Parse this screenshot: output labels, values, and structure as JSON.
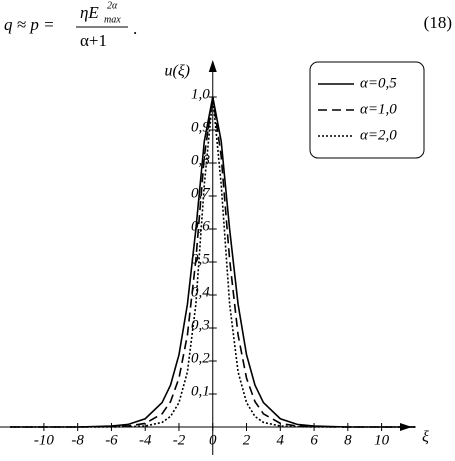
{
  "equation": {
    "lhs": "q ≈ p =",
    "numerator": "ηE",
    "superscript": "2α",
    "subscript": "max",
    "denominator": "α+1",
    "end": ".",
    "number": "(18)"
  },
  "chart_data": {
    "type": "line",
    "ylabel": "u(ξ)",
    "xlabel": "ξ",
    "x": [
      -12,
      -10,
      -8,
      -6,
      -5,
      -4,
      -3,
      -2.5,
      -2,
      -1.5,
      -1,
      -0.5,
      0,
      0.5,
      1,
      1.5,
      2,
      2.5,
      3,
      4,
      5,
      6,
      8,
      10,
      12
    ],
    "series": [
      {
        "name": "α=0,5",
        "color": "#000",
        "dash": "solid",
        "values": [
          0,
          0,
          0,
          0.003,
          0.008,
          0.025,
          0.074,
          0.127,
          0.219,
          0.372,
          0.599,
          0.866,
          1,
          0.866,
          0.599,
          0.372,
          0.219,
          0.127,
          0.074,
          0.025,
          0.008,
          0.003,
          0,
          0,
          0
        ]
      },
      {
        "name": "α=1,0",
        "color": "#000",
        "dash": "dashed",
        "values": [
          0,
          0,
          0,
          0.001,
          0.003,
          0.011,
          0.04,
          0.077,
          0.148,
          0.279,
          0.507,
          0.82,
          1,
          0.82,
          0.507,
          0.279,
          0.148,
          0.077,
          0.04,
          0.011,
          0.003,
          0.001,
          0,
          0,
          0
        ]
      },
      {
        "name": "α=2,0",
        "color": "#000",
        "dash": "dotted",
        "values": [
          0,
          0,
          0,
          0,
          0.001,
          0.003,
          0.014,
          0.032,
          0.074,
          0.167,
          0.372,
          0.735,
          1,
          0.735,
          0.372,
          0.167,
          0.074,
          0.032,
          0.014,
          0.003,
          0.001,
          0,
          0,
          0,
          0
        ]
      }
    ],
    "xlim": [
      -12.6,
      11.8
    ],
    "ylim": [
      0,
      1.1
    ],
    "xticks": [
      -10,
      -8,
      -6,
      -4,
      -2,
      0,
      2,
      4,
      6,
      8,
      10
    ],
    "yticks": [
      {
        "value": 0.1,
        "label": "0,1"
      },
      {
        "value": 0.2,
        "label": "0,2"
      },
      {
        "value": 0.3,
        "label": "0,3"
      },
      {
        "value": 0.4,
        "label": "0,4"
      },
      {
        "value": 0.5,
        "label": "0,5"
      },
      {
        "value": 0.6,
        "label": "0,6"
      },
      {
        "value": 0.7,
        "label": "0,7"
      },
      {
        "value": 0.8,
        "label": "0,8"
      },
      {
        "value": 0.9,
        "label": "0,9"
      },
      {
        "value": 1.0,
        "label": "1,0"
      }
    ],
    "legend": "upper right"
  }
}
